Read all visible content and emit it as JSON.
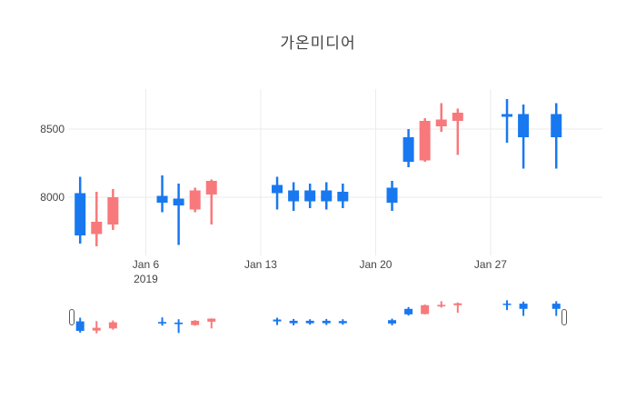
{
  "chart_data": {
    "type": "candlestick",
    "title": "가온미디어",
    "increasing_color": "#F8797B",
    "decreasing_color": "#1878F0",
    "grid_color": "#EBEBEB",
    "text_color": "#444444",
    "grid": true,
    "legend": "none",
    "rangeslider": {
      "visible": true
    },
    "y_axis": {
      "ticks": [
        {
          "label": "8000",
          "value": 8000
        },
        {
          "label": "8500",
          "value": 8500
        }
      ],
      "range": [
        7575,
        8790
      ]
    },
    "x_axis": {
      "ticks": [
        {
          "label": "Jan 6",
          "sublabel": "2019",
          "date": "2019-01-06"
        },
        {
          "label": "Jan 13",
          "date": "2019-01-13"
        },
        {
          "label": "Jan 20",
          "date": "2019-01-20"
        },
        {
          "label": "Jan 27",
          "date": "2019-01-27"
        }
      ],
      "range": [
        "2019-01-01",
        "2019-02-02"
      ]
    },
    "candles": [
      {
        "date": "2019-01-02",
        "open": 8030,
        "high": 8150,
        "low": 7660,
        "close": 7720
      },
      {
        "date": "2019-01-03",
        "open": 7730,
        "high": 8040,
        "low": 7640,
        "close": 7820
      },
      {
        "date": "2019-01-04",
        "open": 7800,
        "high": 8060,
        "low": 7760,
        "close": 8000
      },
      {
        "date": "2019-01-07",
        "open": 8010,
        "high": 8160,
        "low": 7890,
        "close": 7960
      },
      {
        "date": "2019-01-08",
        "open": 7990,
        "high": 8100,
        "low": 7650,
        "close": 7940
      },
      {
        "date": "2019-01-09",
        "open": 7910,
        "high": 8070,
        "low": 7890,
        "close": 8050
      },
      {
        "date": "2019-01-10",
        "open": 8020,
        "high": 8130,
        "low": 7800,
        "close": 8120
      },
      {
        "date": "2019-01-14",
        "open": 8090,
        "high": 8150,
        "low": 7910,
        "close": 8030
      },
      {
        "date": "2019-01-15",
        "open": 8050,
        "high": 8110,
        "low": 7900,
        "close": 7970
      },
      {
        "date": "2019-01-16",
        "open": 8050,
        "high": 8100,
        "low": 7920,
        "close": 7970
      },
      {
        "date": "2019-01-17",
        "open": 8050,
        "high": 8110,
        "low": 7910,
        "close": 7970
      },
      {
        "date": "2019-01-18",
        "open": 8040,
        "high": 8100,
        "low": 7920,
        "close": 7970
      },
      {
        "date": "2019-01-21",
        "open": 8070,
        "high": 8120,
        "low": 7900,
        "close": 7960
      },
      {
        "date": "2019-01-22",
        "open": 8440,
        "high": 8500,
        "low": 8220,
        "close": 8260
      },
      {
        "date": "2019-01-23",
        "open": 8270,
        "high": 8580,
        "low": 8260,
        "close": 8560
      },
      {
        "date": "2019-01-24",
        "open": 8520,
        "high": 8690,
        "low": 8480,
        "close": 8570
      },
      {
        "date": "2019-01-25",
        "open": 8560,
        "high": 8650,
        "low": 8310,
        "close": 8620
      },
      {
        "date": "2019-01-28",
        "open": 8610,
        "high": 8720,
        "low": 8400,
        "close": 8590
      },
      {
        "date": "2019-01-29",
        "open": 8610,
        "high": 8680,
        "low": 8210,
        "close": 8440
      },
      {
        "date": "2019-01-31",
        "open": 8610,
        "high": 8690,
        "low": 8210,
        "close": 8440
      }
    ]
  }
}
